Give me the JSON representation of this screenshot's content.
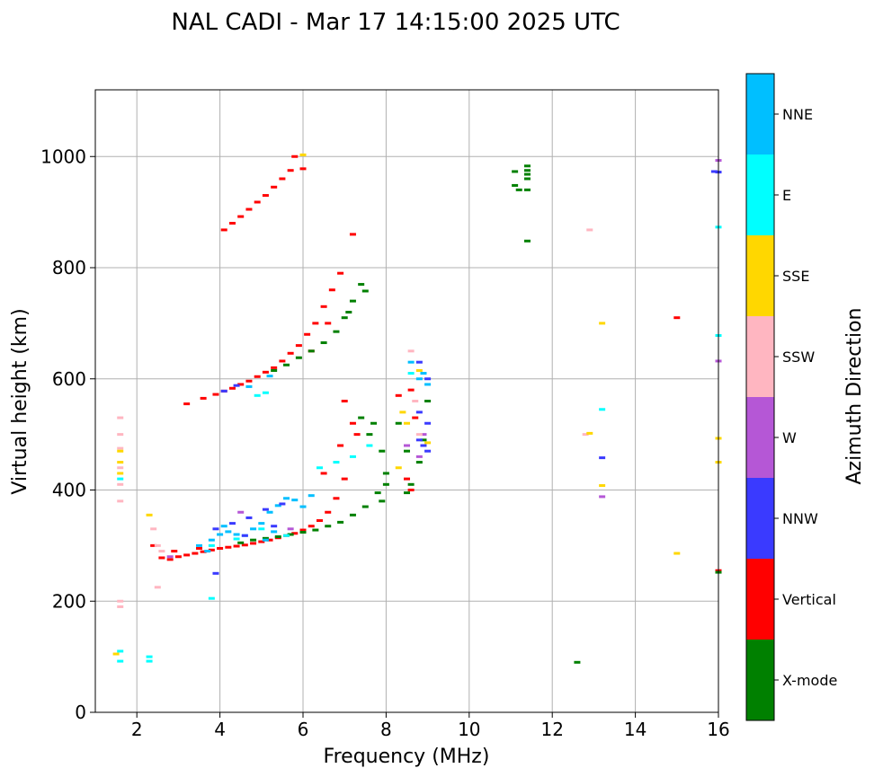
{
  "chart_data": {
    "type": "scatter",
    "title": "NAL CADI - Mar 17 14:15:00 2025 UTC",
    "xlabel": "Frequency (MHz)",
    "ylabel": "Virtual height (km)",
    "xlim": [
      1,
      16
    ],
    "ylim": [
      0,
      1120
    ],
    "xticks": [
      2,
      4,
      6,
      8,
      10,
      12,
      14,
      16
    ],
    "yticks": [
      0,
      200,
      400,
      600,
      800,
      1000
    ],
    "grid": true,
    "colorbar": {
      "label": "Azimuth Direction",
      "categories": [
        {
          "name": "X-mode",
          "color": "#008000"
        },
        {
          "name": "Vertical",
          "color": "#ff0000"
        },
        {
          "name": "NNW",
          "color": "#3a3aff"
        },
        {
          "name": "W",
          "color": "#b557d6"
        },
        {
          "name": "SSW",
          "color": "#ffb6c1"
        },
        {
          "name": "SSE",
          "color": "#ffd700"
        },
        {
          "name": "E",
          "color": "#00ffff"
        },
        {
          "name": "NNE",
          "color": "#00bfff"
        }
      ]
    },
    "series": [
      {
        "name": "Vertical",
        "points": [
          [
            2.6,
            278
          ],
          [
            2.8,
            275
          ],
          [
            3.0,
            280
          ],
          [
            3.2,
            283
          ],
          [
            3.4,
            286
          ],
          [
            3.6,
            289
          ],
          [
            3.8,
            292
          ],
          [
            4.0,
            295
          ],
          [
            4.2,
            297
          ],
          [
            4.4,
            299
          ],
          [
            4.6,
            301
          ],
          [
            4.8,
            304
          ],
          [
            5.0,
            307
          ],
          [
            5.2,
            310
          ],
          [
            5.4,
            314
          ],
          [
            5.6,
            318
          ],
          [
            5.8,
            322
          ],
          [
            6.0,
            328
          ],
          [
            6.2,
            335
          ],
          [
            6.4,
            345
          ],
          [
            6.6,
            360
          ],
          [
            6.8,
            385
          ],
          [
            7.0,
            420
          ],
          [
            6.5,
            430
          ],
          [
            6.9,
            480
          ],
          [
            7.2,
            520
          ],
          [
            7.0,
            560
          ],
          [
            7.3,
            500
          ],
          [
            2.4,
            300
          ],
          [
            2.9,
            290
          ],
          [
            3.5,
            295
          ],
          [
            3.2,
            555
          ],
          [
            3.6,
            565
          ],
          [
            3.9,
            572
          ],
          [
            4.1,
            578
          ],
          [
            4.3,
            583
          ],
          [
            4.5,
            590
          ],
          [
            4.7,
            596
          ],
          [
            4.9,
            604
          ],
          [
            5.1,
            612
          ],
          [
            5.3,
            620
          ],
          [
            5.5,
            632
          ],
          [
            5.7,
            646
          ],
          [
            5.9,
            660
          ],
          [
            6.1,
            680
          ],
          [
            6.3,
            700
          ],
          [
            6.5,
            730
          ],
          [
            6.7,
            760
          ],
          [
            6.9,
            790
          ],
          [
            7.2,
            860
          ],
          [
            6.6,
            700
          ],
          [
            6.2,
            650
          ],
          [
            4.1,
            868
          ],
          [
            4.3,
            880
          ],
          [
            4.5,
            892
          ],
          [
            4.7,
            905
          ],
          [
            4.9,
            918
          ],
          [
            5.1,
            930
          ],
          [
            5.3,
            945
          ],
          [
            5.5,
            960
          ],
          [
            5.7,
            975
          ],
          [
            5.8,
            1000
          ],
          [
            6.0,
            978
          ],
          [
            8.6,
            580
          ],
          [
            8.3,
            570
          ],
          [
            8.5,
            420
          ],
          [
            8.6,
            400
          ],
          [
            8.7,
            530
          ],
          [
            15.0,
            710
          ],
          [
            16.0,
            255
          ]
        ]
      },
      {
        "name": "X-mode",
        "points": [
          [
            4.5,
            305
          ],
          [
            4.8,
            310
          ],
          [
            5.1,
            313
          ],
          [
            5.4,
            316
          ],
          [
            5.7,
            320
          ],
          [
            6.0,
            324
          ],
          [
            6.3,
            328
          ],
          [
            6.6,
            335
          ],
          [
            6.9,
            342
          ],
          [
            7.2,
            355
          ],
          [
            7.5,
            370
          ],
          [
            7.8,
            395
          ],
          [
            8.0,
            430
          ],
          [
            7.9,
            470
          ],
          [
            7.6,
            500
          ],
          [
            7.4,
            530
          ],
          [
            7.9,
            380
          ],
          [
            8.0,
            410
          ],
          [
            7.7,
            520
          ],
          [
            5.3,
            615
          ],
          [
            5.6,
            625
          ],
          [
            5.9,
            638
          ],
          [
            6.2,
            650
          ],
          [
            6.5,
            665
          ],
          [
            6.8,
            685
          ],
          [
            7.0,
            710
          ],
          [
            7.2,
            740
          ],
          [
            7.4,
            770
          ],
          [
            7.5,
            758
          ],
          [
            7.1,
            720
          ],
          [
            8.5,
            470
          ],
          [
            8.6,
            410
          ],
          [
            8.8,
            450
          ],
          [
            8.9,
            490
          ],
          [
            9.0,
            560
          ],
          [
            8.3,
            520
          ],
          [
            8.5,
            395
          ],
          [
            11.1,
            973
          ],
          [
            11.1,
            948
          ],
          [
            11.2,
            940
          ],
          [
            11.4,
            983
          ],
          [
            11.4,
            975
          ],
          [
            11.4,
            968
          ],
          [
            11.4,
            960
          ],
          [
            11.4,
            940
          ],
          [
            11.4,
            848
          ],
          [
            12.6,
            90
          ],
          [
            16.0,
            252
          ]
        ]
      },
      {
        "name": "NNE",
        "points": [
          [
            3.8,
            310
          ],
          [
            4.0,
            320
          ],
          [
            4.2,
            325
          ],
          [
            4.4,
            320
          ],
          [
            4.6,
            318
          ],
          [
            4.8,
            330
          ],
          [
            5.0,
            340
          ],
          [
            5.2,
            360
          ],
          [
            5.4,
            372
          ],
          [
            5.6,
            385
          ],
          [
            5.8,
            382
          ],
          [
            6.0,
            370
          ],
          [
            6.2,
            390
          ],
          [
            3.5,
            300
          ],
          [
            3.7,
            290
          ],
          [
            4.1,
            335
          ],
          [
            5.1,
            310
          ],
          [
            5.3,
            325
          ],
          [
            8.9,
            610
          ],
          [
            8.8,
            600
          ],
          [
            9.0,
            590
          ],
          [
            8.6,
            630
          ],
          [
            4.7,
            586
          ],
          [
            5.2,
            605
          ]
        ]
      },
      {
        "name": "NNW",
        "points": [
          [
            3.9,
            330
          ],
          [
            4.3,
            340
          ],
          [
            4.7,
            350
          ],
          [
            5.1,
            365
          ],
          [
            5.5,
            375
          ],
          [
            5.3,
            335
          ],
          [
            4.6,
            318
          ],
          [
            3.9,
            250
          ],
          [
            8.8,
            490
          ],
          [
            8.9,
            480
          ],
          [
            9.0,
            470
          ],
          [
            9.0,
            520
          ],
          [
            8.8,
            540
          ],
          [
            9.0,
            600
          ],
          [
            8.8,
            630
          ],
          [
            4.4,
            588
          ],
          [
            4.1,
            578
          ],
          [
            16.0,
            972
          ],
          [
            13.2,
            458
          ],
          [
            15.9,
            973
          ]
        ]
      },
      {
        "name": "W",
        "points": [
          [
            2.8,
            280
          ],
          [
            4.5,
            360
          ],
          [
            5.7,
            330
          ],
          [
            8.5,
            480
          ],
          [
            8.9,
            500
          ],
          [
            8.8,
            460
          ],
          [
            16.0,
            993
          ],
          [
            16.0,
            632
          ],
          [
            13.2,
            388
          ]
        ]
      },
      {
        "name": "SSW",
        "points": [
          [
            1.6,
            530
          ],
          [
            1.6,
            500
          ],
          [
            1.6,
            475
          ],
          [
            1.6,
            440
          ],
          [
            1.6,
            410
          ],
          [
            1.6,
            380
          ],
          [
            1.6,
            190
          ],
          [
            1.6,
            200
          ],
          [
            2.4,
            330
          ],
          [
            2.5,
            300
          ],
          [
            2.6,
            290
          ],
          [
            2.5,
            225
          ],
          [
            8.6,
            650
          ],
          [
            8.7,
            560
          ],
          [
            8.8,
            500
          ],
          [
            12.9,
            868
          ],
          [
            12.8,
            500
          ]
        ]
      },
      {
        "name": "SSE",
        "points": [
          [
            1.6,
            470
          ],
          [
            1.6,
            450
          ],
          [
            1.6,
            430
          ],
          [
            1.5,
            105
          ],
          [
            2.3,
            355
          ],
          [
            8.4,
            540
          ],
          [
            8.5,
            520
          ],
          [
            8.8,
            615
          ],
          [
            9.0,
            485
          ],
          [
            13.2,
            700
          ],
          [
            13.2,
            408
          ],
          [
            12.9,
            502
          ],
          [
            16.0,
            493
          ],
          [
            16.0,
            450
          ],
          [
            15.0,
            286
          ],
          [
            6.0,
            1003
          ],
          [
            8.3,
            440
          ]
        ]
      },
      {
        "name": "E",
        "points": [
          [
            1.6,
            420
          ],
          [
            1.6,
            110
          ],
          [
            1.6,
            92
          ],
          [
            2.3,
            100
          ],
          [
            2.3,
            92
          ],
          [
            3.8,
            300
          ],
          [
            4.4,
            312
          ],
          [
            5.0,
            330
          ],
          [
            5.6,
            318
          ],
          [
            6.4,
            440
          ],
          [
            6.8,
            450
          ],
          [
            7.2,
            460
          ],
          [
            7.6,
            480
          ],
          [
            3.8,
            205
          ],
          [
            4.9,
            570
          ],
          [
            5.1,
            575
          ],
          [
            8.6,
            610
          ],
          [
            13.2,
            545
          ],
          [
            16.0,
            678
          ],
          [
            16.0,
            873
          ]
        ]
      }
    ]
  }
}
